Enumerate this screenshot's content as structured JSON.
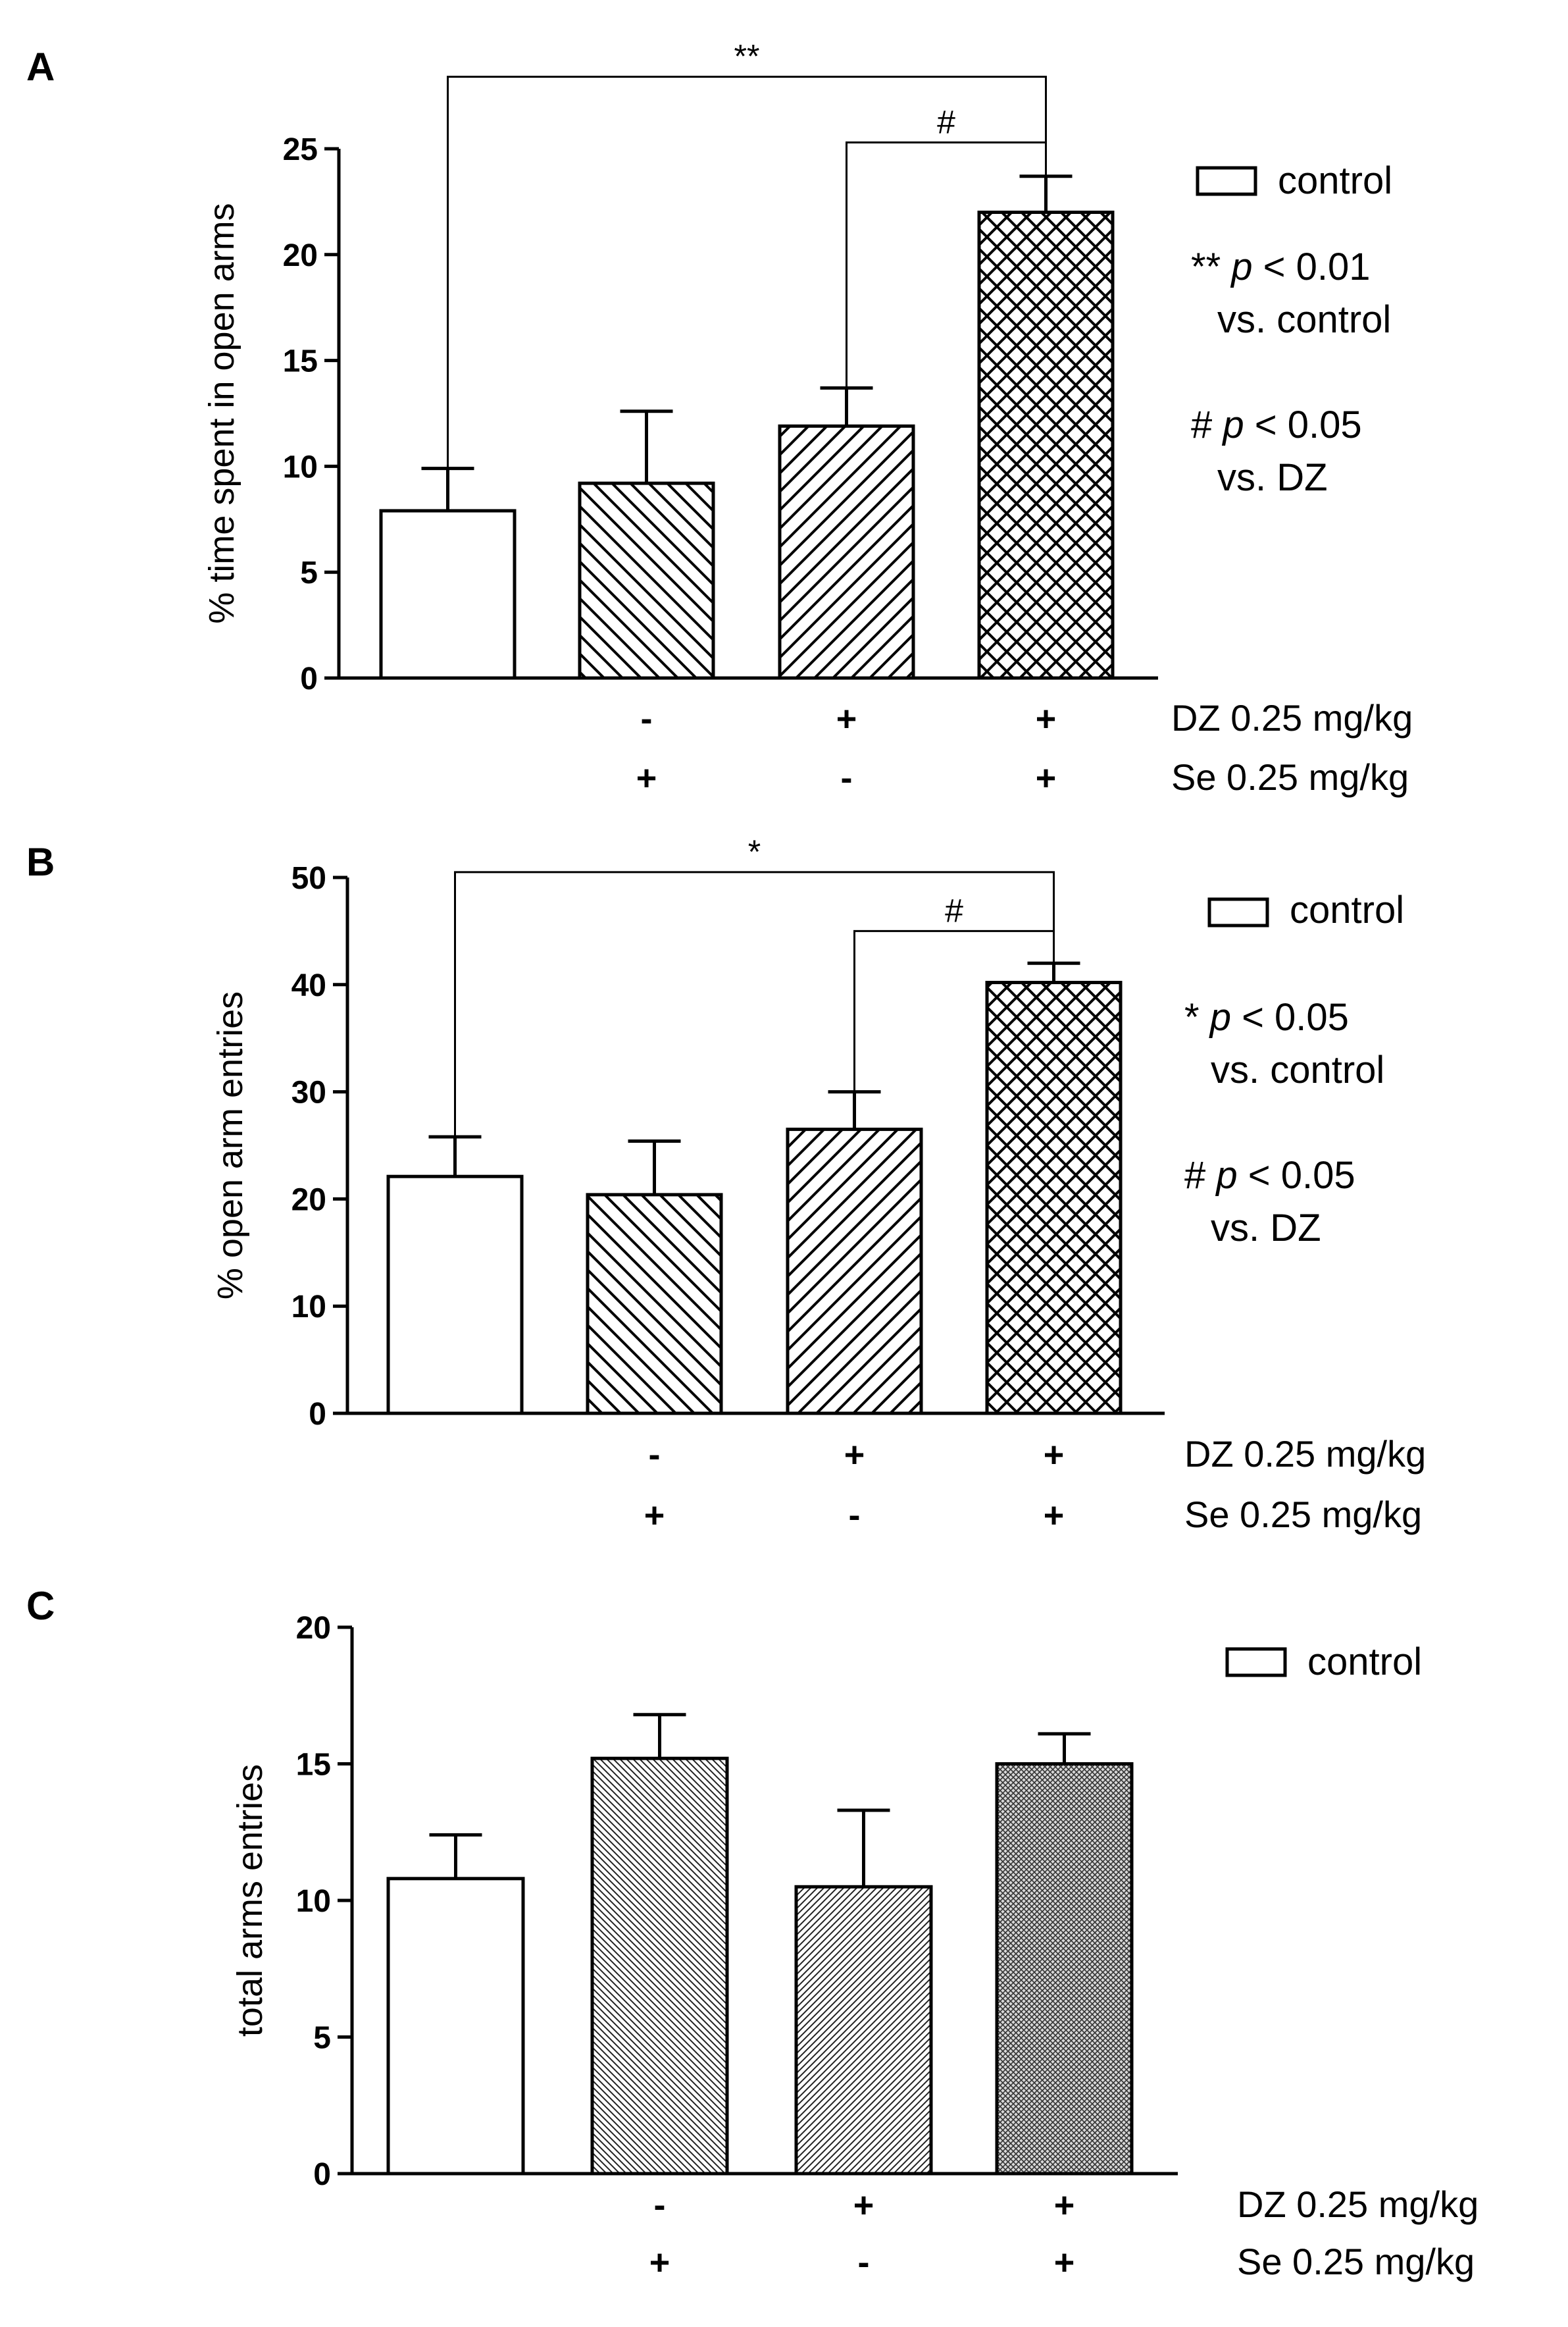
{
  "figure": {
    "legend_control_label": "control",
    "row_labels": {
      "dz": "DZ 0.25 mg/kg",
      "se": "Se 0.25 mg/kg"
    },
    "colors": {
      "ink": "#000000",
      "background": "#ffffff"
    }
  },
  "chart_data": [
    {
      "panel_label": "A",
      "type": "bar",
      "ylabel": "% time spent in open arms",
      "ylim": [
        0,
        25
      ],
      "yticks": [
        "0",
        "5",
        "10",
        "15",
        "20",
        "25"
      ],
      "categories": [
        "control",
        "Se",
        "DZ",
        "DZ + Se"
      ],
      "values": [
        7.9,
        9.2,
        11.9,
        22.0
      ],
      "errors": [
        2.0,
        3.4,
        1.8,
        1.7
      ],
      "patterns": [
        "none",
        "back",
        "fwd",
        "cross"
      ],
      "dz_signs": [
        "",
        "-",
        "+",
        "+"
      ],
      "se_signs": [
        "",
        "+",
        "-",
        "+"
      ],
      "significance": [
        {
          "from": 0,
          "to": 3,
          "label": "**",
          "level": 28.4
        },
        {
          "from": 2,
          "to": 3,
          "label": "#",
          "level": 25.3
        }
      ],
      "legend_notes": [
        {
          "symbol": "** ",
          "p": "p",
          "rest": " < 0.01",
          "comparison": "vs. control"
        },
        {
          "symbol": "# ",
          "p": "p",
          "rest": " < 0.05",
          "comparison": "vs. DZ"
        }
      ]
    },
    {
      "panel_label": "B",
      "type": "bar",
      "ylabel": "% open arm entries",
      "ylim": [
        0,
        50
      ],
      "yticks": [
        "0",
        "10",
        "20",
        "30",
        "40",
        "50"
      ],
      "categories": [
        "control",
        "Se",
        "DZ",
        "DZ + Se"
      ],
      "values": [
        22.1,
        20.4,
        26.5,
        40.2
      ],
      "errors": [
        3.7,
        5.0,
        3.5,
        1.8
      ],
      "patterns": [
        "none",
        "back",
        "fwd",
        "cross"
      ],
      "dz_signs": [
        "",
        "-",
        "+",
        "+"
      ],
      "se_signs": [
        "",
        "+",
        "-",
        "+"
      ],
      "significance": [
        {
          "from": 0,
          "to": 3,
          "label": "*",
          "level": 50.5
        },
        {
          "from": 2,
          "to": 3,
          "label": "#",
          "level": 45.0
        }
      ],
      "legend_notes": [
        {
          "symbol": "* ",
          "p": "p",
          "rest": " < 0.05",
          "comparison": "vs. control"
        },
        {
          "symbol": "# ",
          "p": "p",
          "rest": " < 0.05",
          "comparison": "vs. DZ"
        }
      ]
    },
    {
      "panel_label": "C",
      "type": "bar",
      "ylabel": "total arms entries",
      "ylim": [
        0,
        20
      ],
      "yticks": [
        "0",
        "5",
        "10",
        "15",
        "20"
      ],
      "categories": [
        "control",
        "Se",
        "DZ",
        "DZ + Se"
      ],
      "values": [
        10.8,
        15.2,
        10.5,
        15.0
      ],
      "errors": [
        1.6,
        1.6,
        2.8,
        1.1
      ],
      "patterns": [
        "none",
        "fineback",
        "finefwd",
        "finecross"
      ],
      "dz_signs": [
        "",
        "-",
        "+",
        "+"
      ],
      "se_signs": [
        "",
        "+",
        "-",
        "+"
      ],
      "significance": [],
      "legend_notes": []
    }
  ]
}
